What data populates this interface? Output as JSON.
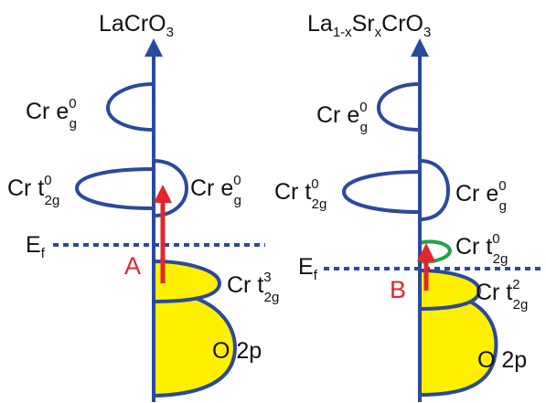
{
  "left_panel": {
    "title": {
      "main": "LaCrO",
      "sub": "3"
    },
    "levels": [
      {
        "prefix": "Cr e",
        "sup": "0",
        "sub": "g"
      },
      {
        "prefix": "Cr t",
        "sup": "0",
        "sub": "2g"
      },
      {
        "prefix": "Cr e",
        "sup": "0",
        "sub": "g"
      },
      {
        "prefix": "Cr t",
        "sup": "3",
        "sub": "2g"
      },
      {
        "prefix": "O 2p"
      }
    ],
    "fermi": {
      "main": "E",
      "sub": "f"
    },
    "transition": "A"
  },
  "right_panel": {
    "title": {
      "p1": "La",
      "s1": "1-x",
      "p2": "Sr",
      "s2": "x",
      "p3": "CrO",
      "s3": "3"
    },
    "levels": [
      {
        "prefix": "Cr e",
        "sup": "0",
        "sub": "g"
      },
      {
        "prefix": "Cr t",
        "sup": "0",
        "sub": "2g"
      },
      {
        "prefix": "Cr e",
        "sup": "0",
        "sub": "g"
      },
      {
        "prefix": "Cr t",
        "sup": "0",
        "sub": "2g"
      },
      {
        "prefix": "Cr t",
        "sup": "2",
        "sub": "2g"
      },
      {
        "prefix": "O 2p"
      }
    ],
    "fermi": {
      "main": "E",
      "sub": "f"
    },
    "transition": "B"
  },
  "colors": {
    "band_outline": "#2a4a9c",
    "filled_band": "#fff000",
    "transition_arrow": "#e3262b",
    "hole_band": "#1fa34a",
    "fermi_line": "#2a4a9c"
  }
}
